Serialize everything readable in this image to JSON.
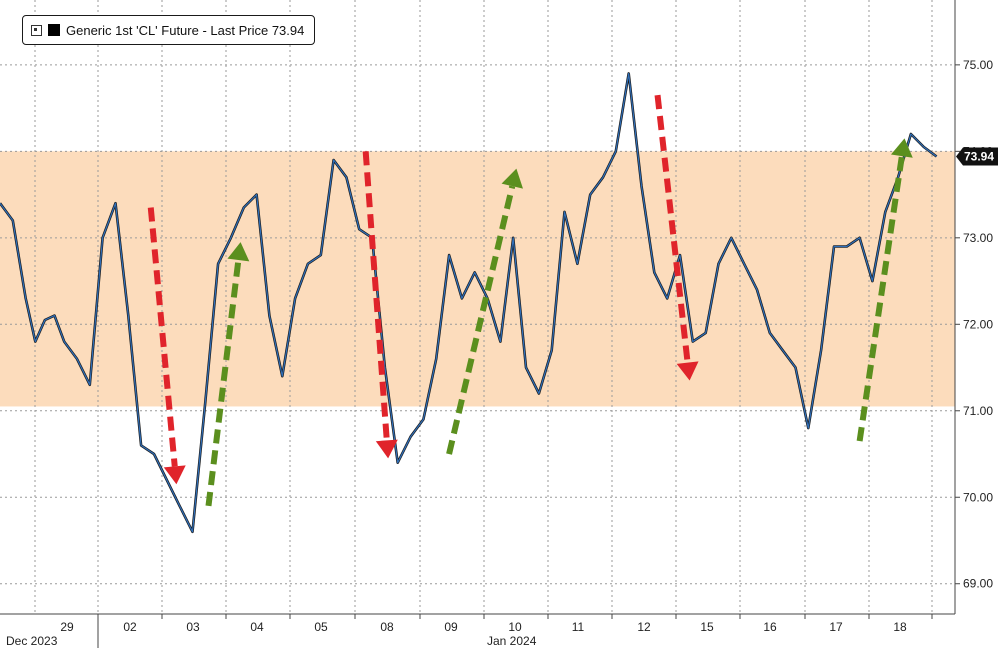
{
  "legend": {
    "label": "Generic 1st 'CL' Future - Last Price 73.94"
  },
  "chart_data": {
    "type": "line",
    "title": "",
    "y_axis": {
      "ticks": [
        69.0,
        70.0,
        71.0,
        72.0,
        73.0,
        74.0,
        75.0
      ],
      "labels": [
        "69.00",
        "70.00",
        "71.00",
        "72.00",
        "73.00",
        "74.00",
        "75.00"
      ],
      "position": "right",
      "range": [
        68.65,
        75.75
      ]
    },
    "x_axis": {
      "ticks": [
        "29",
        "02",
        "03",
        "04",
        "05",
        "08",
        "09",
        "10",
        "11",
        "12",
        "15",
        "16",
        "17",
        "18"
      ],
      "month_labels": [
        "Dec 2023",
        "Jan 2024"
      ]
    },
    "last_value": 73.94,
    "last_value_label": "73.94",
    "highlight_band": {
      "from": 71.05,
      "to": 74.0,
      "color": "#fcdcbc"
    },
    "series": [
      {
        "name": "Generic 1st 'CL' Future - Last Price",
        "color": "#2f6fba",
        "x": [
          0,
          0.2,
          0.4,
          0.55,
          0.7,
          0.85,
          1,
          1.2,
          1.4,
          1.6,
          1.8,
          2,
          2.2,
          2.4,
          2.6,
          2.8,
          3,
          3.2,
          3.4,
          3.6,
          3.8,
          4,
          4.2,
          4.4,
          4.6,
          4.8,
          5,
          5.2,
          5.4,
          5.6,
          5.8,
          6,
          6.2,
          6.4,
          6.6,
          6.8,
          7,
          7.2,
          7.4,
          7.6,
          7.8,
          8,
          8.2,
          8.4,
          8.6,
          8.8,
          9,
          9.2,
          9.4,
          9.6,
          9.8,
          10,
          10.2,
          10.4,
          10.6,
          10.8,
          11,
          11.2,
          11.4,
          11.6,
          11.8,
          12,
          12.2,
          12.4,
          12.6,
          12.8,
          13,
          13.2,
          13.4,
          13.6,
          13.8,
          14,
          14.2,
          14.4,
          14.6
        ],
        "values": [
          73.4,
          73.2,
          72.3,
          71.8,
          72.05,
          72.1,
          71.8,
          71.6,
          71.3,
          73.0,
          73.4,
          72.1,
          70.6,
          70.5,
          70.2,
          69.9,
          69.6,
          71.1,
          72.7,
          73.0,
          73.35,
          73.5,
          72.1,
          71.4,
          72.3,
          72.7,
          72.8,
          73.9,
          73.7,
          73.1,
          73.0,
          71.5,
          70.4,
          70.7,
          70.9,
          71.6,
          72.8,
          72.3,
          72.6,
          72.3,
          71.8,
          73.0,
          71.5,
          71.2,
          71.7,
          73.3,
          72.7,
          73.5,
          73.7,
          74.0,
          74.9,
          73.6,
          72.6,
          72.3,
          72.8,
          71.8,
          71.9,
          72.7,
          73.0,
          72.7,
          72.4,
          71.9,
          71.7,
          71.5,
          70.8,
          71.7,
          72.9,
          72.9,
          73.0,
          72.5,
          73.3,
          73.7,
          74.2,
          74.05,
          73.94
        ]
      }
    ],
    "arrows": [
      {
        "direction": "down",
        "color": "#e0242b",
        "from": [
          2.35,
          73.35
        ],
        "to": [
          2.75,
          70.15
        ]
      },
      {
        "direction": "up",
        "color": "#5b8f1e",
        "from": [
          3.25,
          69.9
        ],
        "to": [
          3.75,
          72.95
        ]
      },
      {
        "direction": "down",
        "color": "#e0242b",
        "from": [
          5.7,
          74.0
        ],
        "to": [
          6.05,
          70.45
        ]
      },
      {
        "direction": "up",
        "color": "#5b8f1e",
        "from": [
          7.0,
          70.5
        ],
        "to": [
          8.05,
          73.8
        ]
      },
      {
        "direction": "down",
        "color": "#e0242b",
        "from": [
          10.25,
          74.65
        ],
        "to": [
          10.75,
          71.35
        ]
      },
      {
        "direction": "up",
        "color": "#5b8f1e",
        "from": [
          13.4,
          70.65
        ],
        "to": [
          14.1,
          74.15
        ]
      }
    ]
  }
}
